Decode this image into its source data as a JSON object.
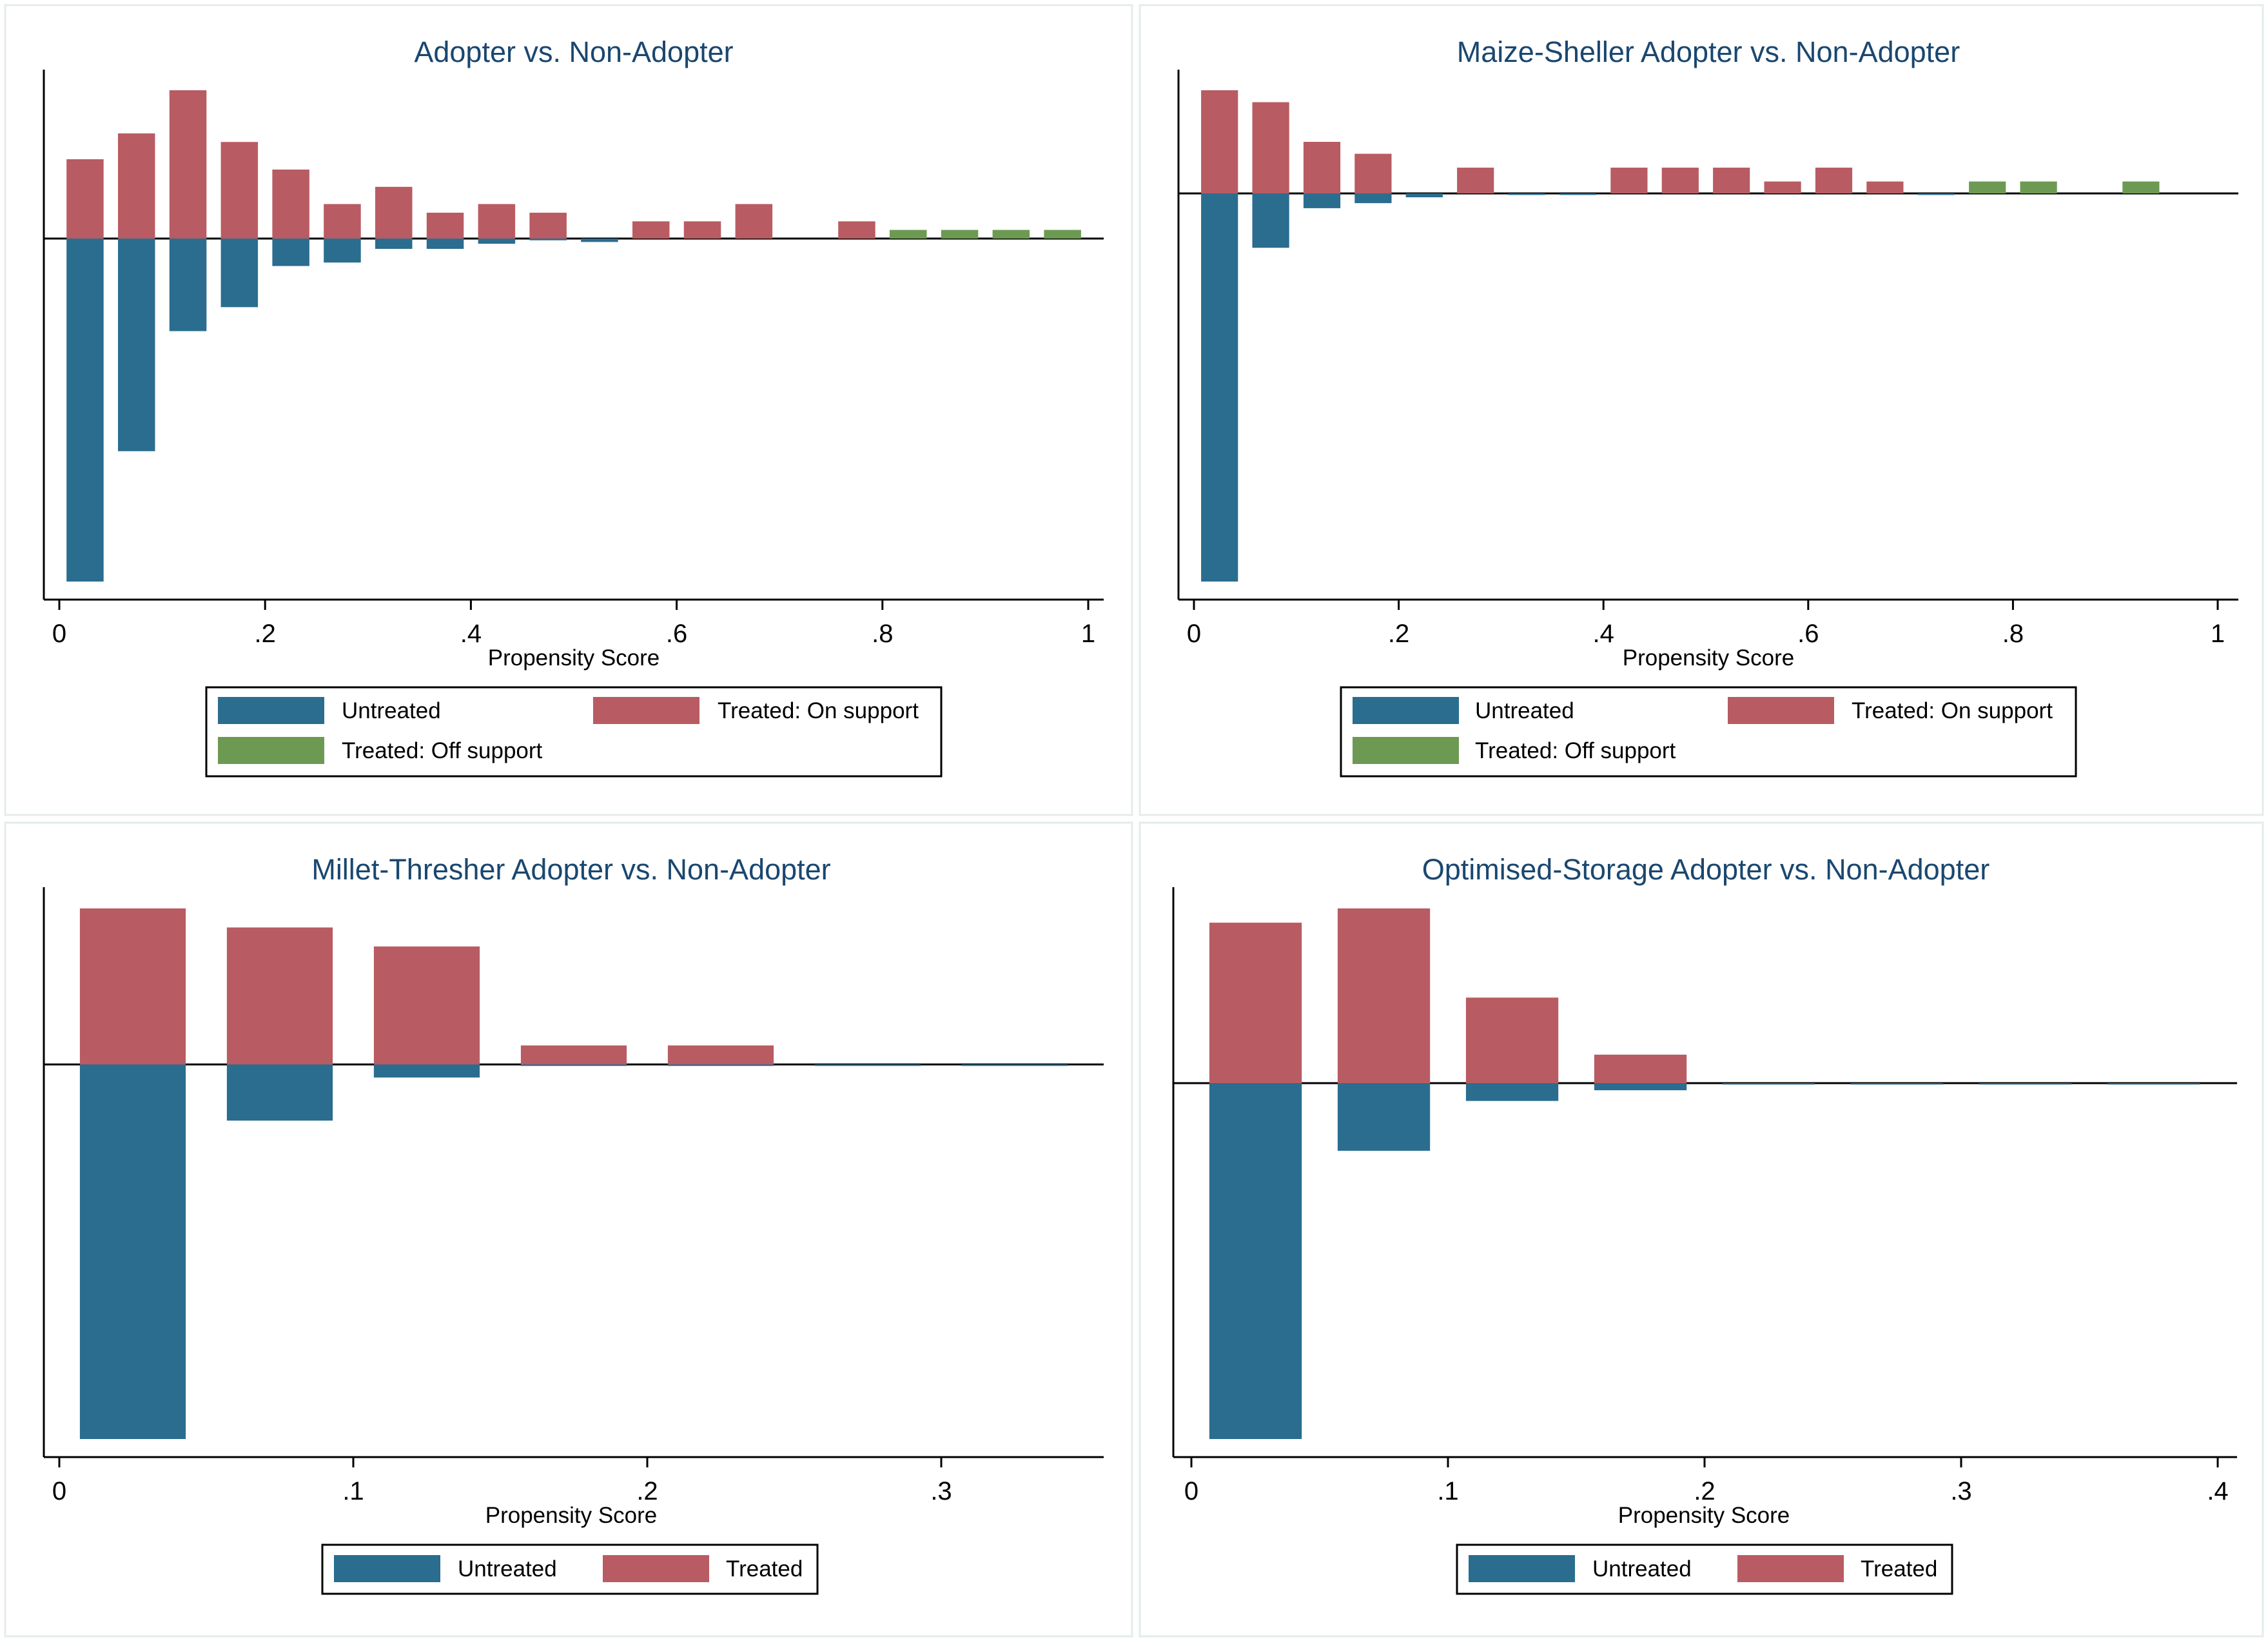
{
  "colors": {
    "untreated": "#2a6d8f",
    "treated": "#b95b62",
    "off_support": "#6d9a52",
    "title": "#1a476f"
  },
  "chart_data": [
    {
      "type": "bar",
      "title": "Adopter vs. Non-Adopter",
      "xlabel": "Propensity Score",
      "ylabel": "",
      "xlim": [
        0,
        1
      ],
      "ylim": [
        -1.0,
        0.43
      ],
      "xticks": [
        {
          "value": 0,
          "label": "0"
        },
        {
          "value": 0.2,
          "label": ".2"
        },
        {
          "value": 0.4,
          "label": ".4"
        },
        {
          "value": 0.6,
          "label": ".6"
        },
        {
          "value": 0.8,
          "label": ".8"
        },
        {
          "value": 1,
          "label": "1"
        }
      ],
      "bin_width": 0.04,
      "series": [
        {
          "name": "Untreated",
          "key": "untreated",
          "x": [
            0.025,
            0.075,
            0.125,
            0.175,
            0.225,
            0.275,
            0.325,
            0.375,
            0.425,
            0.475,
            0.525
          ],
          "values": [
            -1.0,
            -0.62,
            -0.27,
            -0.2,
            -0.08,
            -0.07,
            -0.03,
            -0.03,
            -0.015,
            -0.005,
            -0.01
          ]
        },
        {
          "name": "Treated: On support",
          "key": "treated",
          "x": [
            0.025,
            0.075,
            0.125,
            0.175,
            0.225,
            0.275,
            0.325,
            0.375,
            0.425,
            0.475,
            0.575,
            0.625,
            0.675,
            0.775
          ],
          "values": [
            0.23,
            0.305,
            0.43,
            0.28,
            0.2,
            0.1,
            0.15,
            0.075,
            0.1,
            0.075,
            0.05,
            0.05,
            0.1,
            0.05
          ]
        },
        {
          "name": "Treated: Off support",
          "key": "off_support",
          "x": [
            0.825,
            0.875,
            0.925,
            0.975
          ],
          "values": [
            0.025,
            0.025,
            0.025,
            0.025
          ]
        }
      ],
      "legend": {
        "position": "bottom",
        "rows": [
          [
            {
              "label": "Untreated",
              "key": "untreated"
            },
            {
              "label": "Treated: On support",
              "key": "treated"
            }
          ],
          [
            {
              "label": "Treated: Off support",
              "key": "off_support"
            }
          ]
        ]
      }
    },
    {
      "type": "bar",
      "title": "Maize-Sheller Adopter vs. Non-Adopter",
      "xlabel": "Propensity Score",
      "ylabel": "",
      "xlim": [
        0,
        1
      ],
      "ylim": [
        -1.0,
        0.26
      ],
      "xticks": [
        {
          "value": 0,
          "label": "0"
        },
        {
          "value": 0.2,
          "label": ".2"
        },
        {
          "value": 0.4,
          "label": ".4"
        },
        {
          "value": 0.6,
          "label": ".6"
        },
        {
          "value": 0.8,
          "label": ".8"
        },
        {
          "value": 1,
          "label": "1"
        }
      ],
      "bin_width": 0.04,
      "series": [
        {
          "name": "Untreated",
          "key": "untreated",
          "x": [
            0.025,
            0.075,
            0.125,
            0.175,
            0.225,
            0.325,
            0.375,
            0.725
          ],
          "values": [
            -1.0,
            -0.14,
            -0.038,
            -0.025,
            -0.01,
            -0.004,
            -0.004,
            -0.004
          ]
        },
        {
          "name": "Treated: On support",
          "key": "treated",
          "x": [
            0.025,
            0.075,
            0.125,
            0.175,
            0.275,
            0.425,
            0.475,
            0.525,
            0.575,
            0.625,
            0.675
          ],
          "values": [
            0.26,
            0.23,
            0.13,
            0.1,
            0.065,
            0.065,
            0.065,
            0.065,
            0.03,
            0.065,
            0.03
          ]
        },
        {
          "name": "Treated: Off support",
          "key": "off_support",
          "x": [
            0.775,
            0.825,
            0.925
          ],
          "values": [
            0.03,
            0.03,
            0.03
          ]
        }
      ],
      "legend": {
        "position": "bottom",
        "rows": [
          [
            {
              "label": "Untreated",
              "key": "untreated"
            },
            {
              "label": "Treated: On support",
              "key": "treated"
            }
          ],
          [
            {
              "label": "Treated: Off support",
              "key": "off_support"
            }
          ]
        ]
      }
    },
    {
      "type": "bar",
      "title": "Millet-Thresher Adopter vs. Non-Adopter",
      "xlabel": "Propensity Score",
      "ylabel": "",
      "xlim": [
        0,
        0.35
      ],
      "ylim": [
        -1.0,
        0.41
      ],
      "xticks": [
        {
          "value": 0,
          "label": "0"
        },
        {
          "value": 0.1,
          "label": ".1"
        },
        {
          "value": 0.2,
          "label": ".2"
        },
        {
          "value": 0.3,
          "label": ".3"
        }
      ],
      "bin_width": 0.04,
      "series": [
        {
          "name": "Untreated",
          "key": "untreated",
          "x": [
            0.025,
            0.075,
            0.125,
            0.175,
            0.225,
            0.275,
            0.325
          ],
          "values": [
            -1.0,
            -0.15,
            -0.035,
            -0.004,
            -0.004,
            -0.004,
            -0.004
          ]
        },
        {
          "name": "Treated",
          "key": "treated",
          "x": [
            0.025,
            0.075,
            0.125,
            0.175,
            0.225
          ],
          "values": [
            0.41,
            0.36,
            0.31,
            0.05,
            0.05
          ]
        }
      ],
      "legend": {
        "position": "bottom",
        "rows": [
          [
            {
              "label": "Untreated",
              "key": "untreated"
            },
            {
              "label": "Treated",
              "key": "treated"
            }
          ]
        ]
      }
    },
    {
      "type": "bar",
      "title": "Optimised-Storage Adopter vs. Non-Adopter",
      "xlabel": "Propensity Score",
      "ylabel": "",
      "xlim": [
        0,
        0.4
      ],
      "ylim": [
        -1.0,
        0.49
      ],
      "xticks": [
        {
          "value": 0,
          "label": "0"
        },
        {
          "value": 0.1,
          "label": ".1"
        },
        {
          "value": 0.2,
          "label": ".2"
        },
        {
          "value": 0.3,
          "label": ".3"
        },
        {
          "value": 0.4,
          "label": ".4"
        }
      ],
      "bin_width": 0.04,
      "series": [
        {
          "name": "Untreated",
          "key": "untreated",
          "x": [
            0.025,
            0.075,
            0.125,
            0.175,
            0.225,
            0.275,
            0.325,
            0.375
          ],
          "values": [
            -1.0,
            -0.19,
            -0.05,
            -0.02,
            -0.004,
            -0.004,
            -0.004,
            -0.004
          ]
        },
        {
          "name": "Treated",
          "key": "treated",
          "x": [
            0.025,
            0.075,
            0.125,
            0.175
          ],
          "values": [
            0.45,
            0.49,
            0.24,
            0.08
          ]
        }
      ],
      "legend": {
        "position": "bottom",
        "rows": [
          [
            {
              "label": "Untreated",
              "key": "untreated"
            },
            {
              "label": "Treated",
              "key": "treated"
            }
          ]
        ]
      }
    }
  ]
}
